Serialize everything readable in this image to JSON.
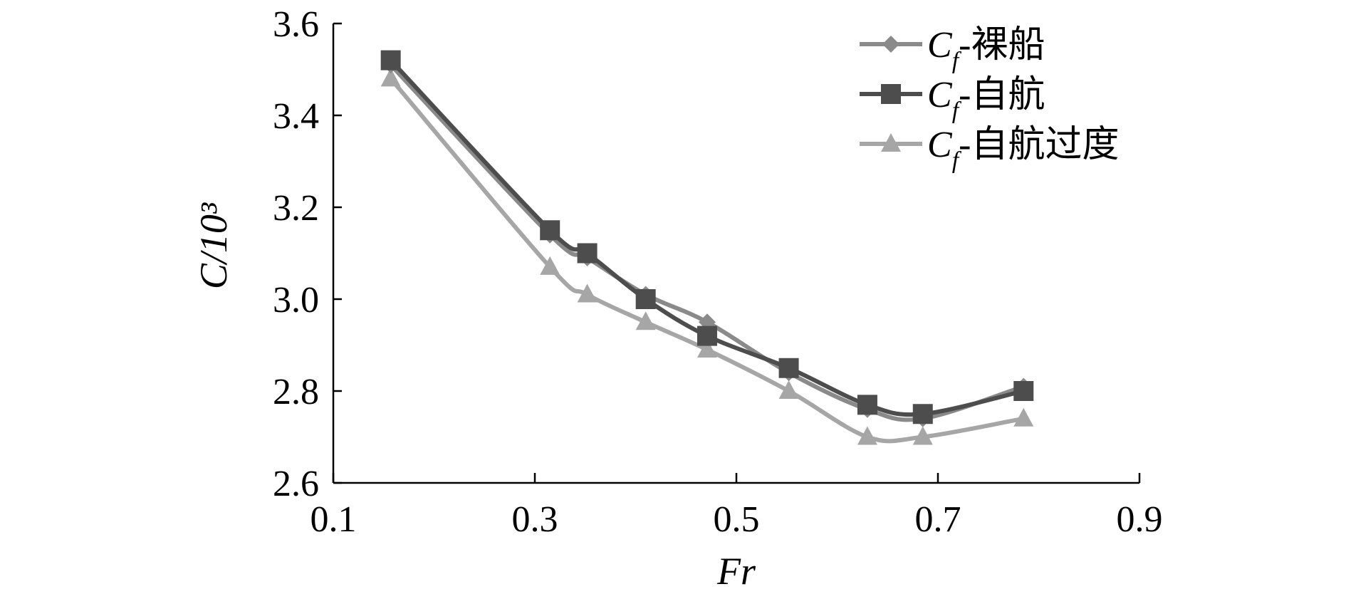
{
  "chart_data": {
    "type": "line",
    "xlabel": "Fr",
    "ylabel": "C/10³",
    "xlim": [
      0.1,
      0.9
    ],
    "ylim": [
      2.6,
      3.6
    ],
    "xticks": [
      "0.1",
      "0.3",
      "0.5",
      "0.7",
      "0.9"
    ],
    "yticks": [
      "2.6",
      "2.8",
      "3.0",
      "3.2",
      "3.4",
      "3.6"
    ],
    "grid": false,
    "legend_position": "top-right",
    "x": [
      0.157,
      0.315,
      0.352,
      0.41,
      0.471,
      0.552,
      0.63,
      0.685,
      0.785
    ],
    "series": [
      {
        "name": "Cf-裸船",
        "legend_symbol": "C",
        "legend_subscript": "f",
        "legend_suffix": "-裸船",
        "marker": "diamond",
        "color": "#8a8a8a",
        "values": [
          3.51,
          3.14,
          3.09,
          3.01,
          2.95,
          2.84,
          2.76,
          2.74,
          2.81
        ]
      },
      {
        "name": "Cf-自航",
        "legend_symbol": "C",
        "legend_subscript": "f",
        "legend_suffix": "-自航",
        "marker": "square",
        "color": "#4d4d4d",
        "values": [
          3.52,
          3.15,
          3.1,
          3.0,
          2.92,
          2.85,
          2.77,
          2.75,
          2.8
        ]
      },
      {
        "name": "Cf-自航过度",
        "legend_symbol": "C",
        "legend_subscript": "f",
        "legend_suffix": "-自航过度",
        "marker": "triangle",
        "color": "#a6a6a6",
        "values": [
          3.48,
          3.07,
          3.01,
          2.95,
          2.89,
          2.8,
          2.7,
          2.7,
          2.74
        ]
      }
    ]
  }
}
